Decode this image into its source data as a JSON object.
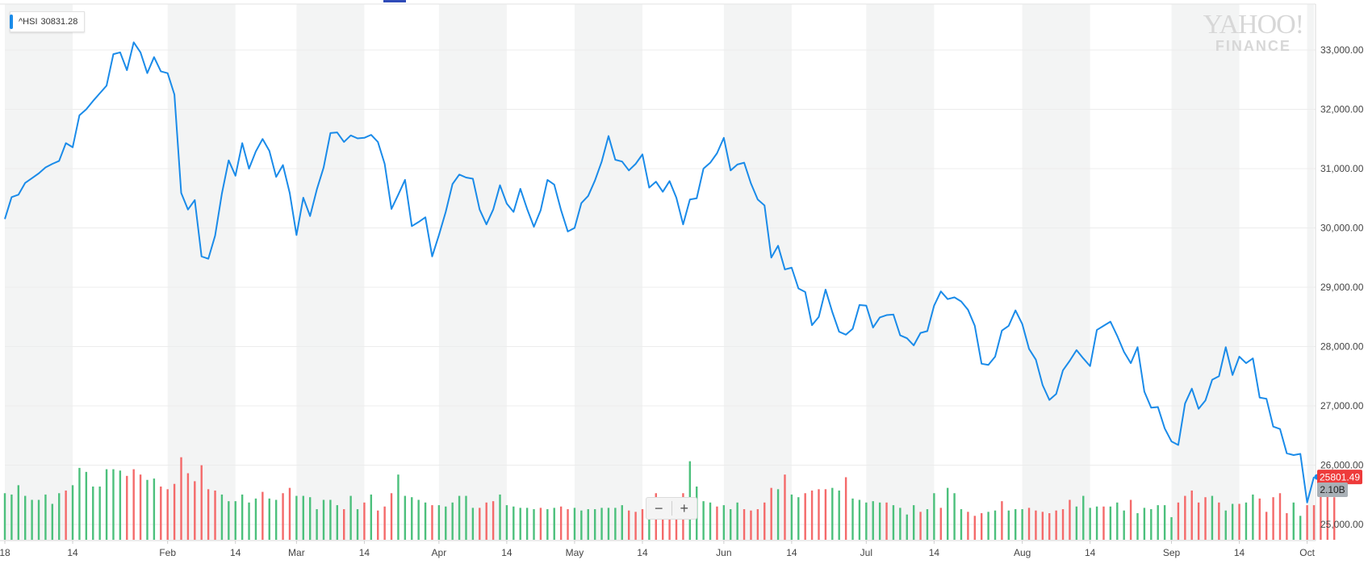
{
  "legend": {
    "symbol": "^HSI",
    "value": "30831.28",
    "color": "#1a8be9"
  },
  "watermark": {
    "line1": "YAHOO!",
    "line2": "FINANCE"
  },
  "zoom": {
    "minus_label": "−",
    "plus_label": "+"
  },
  "colors": {
    "line": "#1a8be9",
    "up_volume": "#4cc07c",
    "down_volume": "#f46a6a",
    "band": "#f3f4f4",
    "grid": "#ececec",
    "last_price_badge": "#ee3b3b",
    "volume_badge": "#a9b0b6"
  },
  "chart_data": {
    "type": "line",
    "ylim": [
      24800,
      33600
    ],
    "y_ticks": [
      "25,000.00",
      "26,000.00",
      "27,000.00",
      "28,000.00",
      "29,000.00",
      "30,000.00",
      "31,000.00",
      "32,000.00",
      "33,000.00"
    ],
    "y_tick_values": [
      25000,
      26000,
      27000,
      28000,
      29000,
      30000,
      31000,
      32000,
      33000
    ],
    "x_ticks": [
      "18",
      "14",
      "Feb",
      "14",
      "Mar",
      "14",
      "Apr",
      "14",
      "May",
      "14",
      "Jun",
      "14",
      "Jul",
      "14",
      "Aug",
      "14",
      "Sep",
      "14",
      "Oct"
    ],
    "x_tick_index": [
      0,
      10,
      24,
      34,
      43,
      53,
      64,
      74,
      84,
      94,
      106,
      116,
      127,
      137,
      150,
      160,
      172,
      182,
      192
    ],
    "last_price": "25801.49",
    "last_volume": "2.10B",
    "series": [
      {
        "values": [
          30150,
          30520,
          30560,
          30760,
          30840,
          30920,
          31020,
          31080,
          31130,
          31430,
          31360,
          31900,
          32000,
          32140,
          32270,
          32400,
          32930,
          32960,
          32660,
          33130,
          32960,
          32610,
          32880,
          32640,
          32610,
          32250,
          30590,
          30310,
          30470,
          29520,
          29480,
          29870,
          30580,
          31140,
          30880,
          31430,
          31000,
          31290,
          31500,
          31300,
          30860,
          31060,
          30590,
          29880,
          30510,
          30200,
          30650,
          31020,
          31600,
          31610,
          31450,
          31560,
          31510,
          31520,
          31570,
          31450,
          31080,
          30320,
          30560,
          30810,
          30030,
          30100,
          30180,
          29520,
          29880,
          30270,
          30740,
          30900,
          30850,
          30830,
          30310,
          30060,
          30310,
          30720,
          30410,
          30270,
          30660,
          30320,
          30020,
          30300,
          30810,
          30730,
          30300,
          29940,
          30000,
          30420,
          30540,
          30800,
          31120,
          31550,
          31150,
          31120,
          30970,
          31080,
          31240,
          30680,
          30780,
          30610,
          30790,
          30510,
          30060,
          30480,
          30500,
          31000,
          31100,
          31260,
          31520,
          30970,
          31070,
          31100,
          30750,
          30480,
          30380,
          29500,
          29700,
          29300,
          29330,
          28980,
          28920,
          28360,
          28500,
          28960,
          28580,
          28250,
          28200,
          28300,
          28700,
          28690,
          28320,
          28490,
          28530,
          28540,
          28190,
          28140,
          28020,
          28230,
          28260,
          28690,
          28930,
          28800,
          28830,
          28760,
          28620,
          28350,
          27710,
          27690,
          27830,
          28270,
          28350,
          28610,
          28380,
          27960,
          27780,
          27350,
          27100,
          27200,
          27600,
          27760,
          27940,
          27800,
          27670,
          28280,
          28350,
          28420,
          28180,
          27910,
          27720,
          27990,
          27240,
          26970,
          26980,
          26620,
          26400,
          26340,
          27040,
          27290,
          26950,
          27090,
          27440,
          27500,
          27990,
          27520,
          27830,
          27720,
          27800,
          27140,
          27120,
          26650,
          26610,
          26200,
          26170,
          26190,
          25370,
          25801
        ]
      }
    ],
    "volume": {
      "heights": [
        0.35,
        0.34,
        0.41,
        0.33,
        0.3,
        0.3,
        0.34,
        0.27,
        0.35,
        0.37,
        0.41,
        0.54,
        0.51,
        0.4,
        0.4,
        0.53,
        0.53,
        0.52,
        0.48,
        0.53,
        0.49,
        0.45,
        0.46,
        0.4,
        0.38,
        0.42,
        0.62,
        0.5,
        0.44,
        0.56,
        0.38,
        0.37,
        0.34,
        0.29,
        0.29,
        0.34,
        0.28,
        0.31,
        0.36,
        0.31,
        0.3,
        0.35,
        0.39,
        0.33,
        0.33,
        0.32,
        0.23,
        0.3,
        0.3,
        0.26,
        0.23,
        0.33,
        0.23,
        0.28,
        0.34,
        0.22,
        0.25,
        0.35,
        0.49,
        0.33,
        0.32,
        0.3,
        0.28,
        0.26,
        0.26,
        0.25,
        0.28,
        0.33,
        0.33,
        0.24,
        0.24,
        0.28,
        0.29,
        0.34,
        0.26,
        0.25,
        0.24,
        0.24,
        0.23,
        0.24,
        0.23,
        0.24,
        0.25,
        0.23,
        0.24,
        0.22,
        0.23,
        0.23,
        0.24,
        0.24,
        0.24,
        0.26,
        0.22,
        0.21,
        0.23,
        0.25,
        0.35,
        0.23,
        0.23,
        0.23,
        0.35,
        0.59,
        0.4,
        0.29,
        0.28,
        0.25,
        0.26,
        0.23,
        0.28,
        0.23,
        0.22,
        0.23,
        0.28,
        0.39,
        0.38,
        0.49,
        0.34,
        0.32,
        0.35,
        0.37,
        0.38,
        0.38,
        0.39,
        0.37,
        0.47,
        0.31,
        0.3,
        0.28,
        0.29,
        0.28,
        0.28,
        0.26,
        0.24,
        0.19,
        0.26,
        0.21,
        0.23,
        0.35,
        0.24,
        0.39,
        0.35,
        0.23,
        0.21,
        0.18,
        0.2,
        0.21,
        0.22,
        0.29,
        0.22,
        0.23,
        0.23,
        0.24,
        0.22,
        0.21,
        0.2,
        0.22,
        0.23,
        0.3,
        0.25,
        0.33,
        0.24,
        0.25,
        0.25,
        0.25,
        0.28,
        0.22,
        0.3,
        0.2,
        0.24,
        0.23,
        0.26,
        0.26,
        0.17,
        0.28,
        0.33,
        0.37,
        0.28,
        0.32,
        0.33,
        0.28,
        0.22,
        0.27,
        0.27,
        0.28,
        0.34,
        0.31,
        0.21,
        0.32,
        0.35,
        0.2,
        0.28,
        0.18,
        0.26,
        0.26,
        0.4,
        0.48,
        0.32
      ],
      "up": [
        true,
        true,
        true,
        true,
        true,
        true,
        true,
        true,
        true,
        false,
        true,
        true,
        true,
        true,
        true,
        true,
        true,
        true,
        false,
        false,
        false,
        true,
        true,
        false,
        false,
        false,
        false,
        false,
        false,
        false,
        false,
        false,
        true,
        true,
        true,
        true,
        true,
        true,
        false,
        true,
        true,
        false,
        false,
        true,
        true,
        true,
        true,
        true,
        true,
        true,
        false,
        true,
        true,
        false,
        true,
        false,
        false,
        false,
        true,
        true,
        true,
        true,
        true,
        false,
        true,
        true,
        true,
        true,
        true,
        true,
        false,
        false,
        false,
        true,
        true,
        true,
        true,
        true,
        true,
        false,
        true,
        true,
        false,
        false,
        true,
        true,
        true,
        true,
        true,
        true,
        true,
        true,
        false,
        false,
        false,
        true,
        false,
        false,
        false,
        false,
        false,
        true,
        true,
        true,
        true,
        false,
        true,
        true,
        true,
        false,
        false,
        false,
        false,
        false,
        true,
        false,
        true,
        true,
        false,
        false,
        false,
        false,
        true,
        true,
        false,
        true,
        true,
        true,
        true,
        true,
        false,
        true,
        true,
        true,
        true,
        false,
        true,
        true,
        false,
        true,
        true,
        true,
        false,
        false,
        false,
        true,
        true,
        false,
        true,
        true,
        true,
        false,
        false,
        false,
        false,
        false,
        false,
        false,
        true,
        true,
        true,
        true,
        false,
        true,
        true,
        true,
        false,
        true,
        true,
        true,
        true,
        true,
        true,
        false,
        false,
        false,
        false,
        false,
        true,
        false,
        true,
        true,
        false,
        true,
        true,
        false,
        false,
        false,
        false,
        false,
        true,
        true
      ]
    }
  }
}
